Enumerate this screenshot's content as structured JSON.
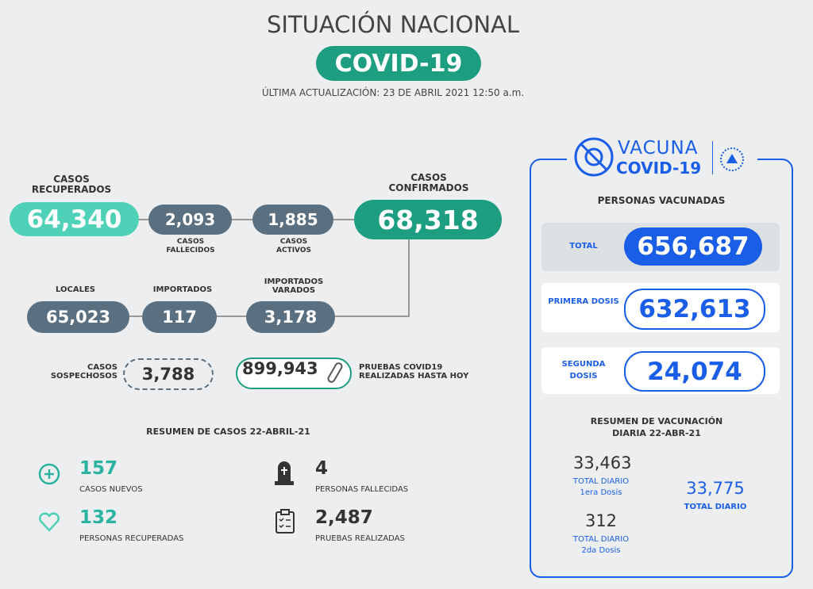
{
  "header": {
    "title": "SITUACIÓN NACIONAL",
    "badge": "COVID-19",
    "updated": "ÚLTIMA ACTUALIZACIÓN: 23 DE ABRIL 2021 12:50 a.m."
  },
  "cases": {
    "recuperados": {
      "label": "CASOS RECUPERADOS",
      "value": "64,340"
    },
    "fallecidos": {
      "label": "CASOS FALLECIDOS",
      "value": "2,093"
    },
    "activos": {
      "label": "CASOS ACTIVOS",
      "value": "1,885"
    },
    "confirmados": {
      "label": "CASOS CONFIRMADOS",
      "value": "68,318"
    },
    "locales": {
      "label": "LOCALES",
      "value": "65,023"
    },
    "importados": {
      "label": "IMPORTADOS",
      "value": "117"
    },
    "varados": {
      "label": "IMPORTADOS VARADOS",
      "value": "3,178"
    },
    "sospechosos": {
      "label": "CASOS SOSPECHOSOS",
      "value": "3,788"
    },
    "pruebas": {
      "label": "PRUEBAS COVID19 REALIZADAS HASTA HOY",
      "value": "899,943"
    }
  },
  "summary": {
    "title": "RESUMEN DE CASOS 22-ABRIL-21",
    "items": [
      {
        "value": "157",
        "label": "CASOS NUEVOS"
      },
      {
        "value": "4",
        "label": "PERSONAS FALLECIDAS"
      },
      {
        "value": "132",
        "label": "PERSONAS RECUPERADAS"
      },
      {
        "value": "2,487",
        "label": "PRUEBAS REALIZADAS"
      }
    ]
  },
  "vaccine": {
    "logo_top": "VACUNA",
    "logo_bottom": "COVID-19",
    "heading": "PERSONAS VACUNADAS",
    "rows": [
      {
        "label": "TOTAL",
        "value": "656,687"
      },
      {
        "label": "PRIMERA DOSIS",
        "value": "632,613"
      },
      {
        "label": "SEGUNDA DOSIS",
        "value": "24,074"
      }
    ],
    "daily_title": "RESUMEN DE VACUNACIÓN DIARIA 22-ABR-21",
    "daily": [
      {
        "value": "33,463",
        "label": "TOTAL DIARIO",
        "note": "1era Dosis"
      },
      {
        "value": "312",
        "label": "TOTAL DIARIO",
        "note": "2da Dosis"
      },
      {
        "value": "33,775",
        "label": "TOTAL DIARIO"
      }
    ]
  }
}
